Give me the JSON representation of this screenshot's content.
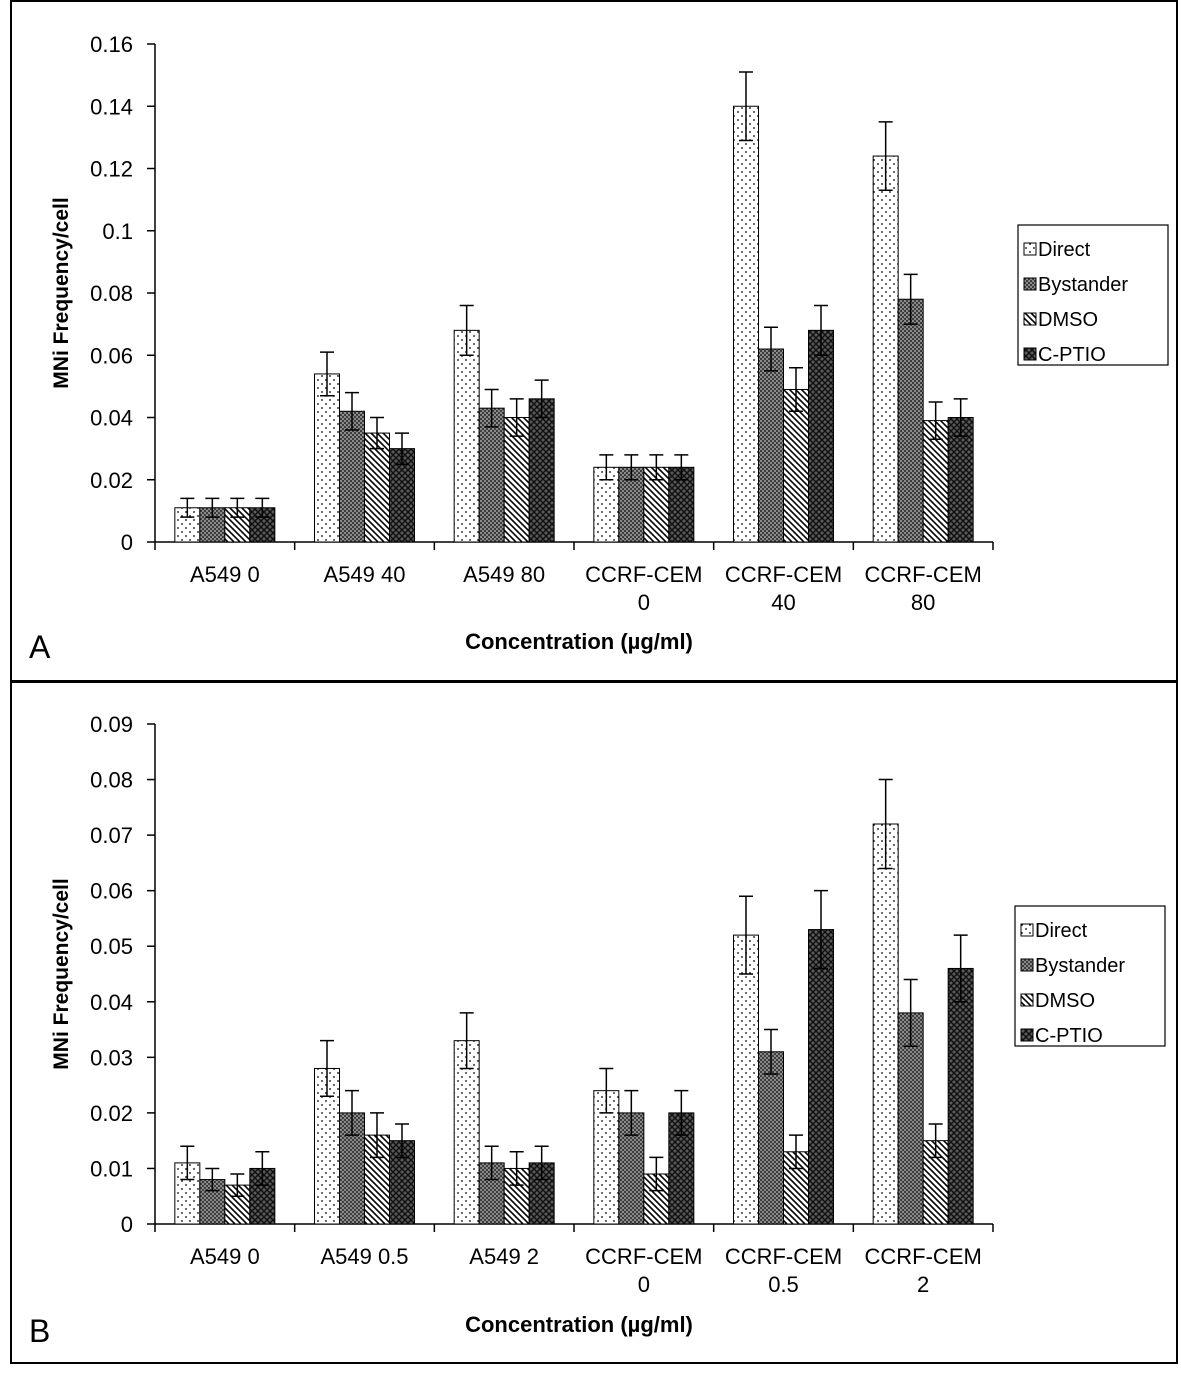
{
  "chart_data": [
    {
      "type": "bar",
      "panel_label": "A",
      "xlabel": "Concentration (µg/ml)",
      "ylabel": "MNi Frequency/cell",
      "ylim": [
        0,
        0.16
      ],
      "yticks": [
        0,
        0.02,
        0.04,
        0.06,
        0.08,
        0.1,
        0.12,
        0.14,
        0.16
      ],
      "ytick_labels": [
        "0",
        "0.02",
        "0.04",
        "0.06",
        "0.08",
        "0.1",
        "0.12",
        "0.14",
        "0.16"
      ],
      "categories": [
        [
          "A549 0"
        ],
        [
          "A549 40"
        ],
        [
          "A549 80"
        ],
        [
          "CCRF-CEM",
          "0"
        ],
        [
          "CCRF-CEM",
          "40"
        ],
        [
          "CCRF-CEM",
          "80"
        ]
      ],
      "legend_placement": "right",
      "series": [
        {
          "name": "Direct",
          "pattern": "dots",
          "values": [
            0.011,
            0.054,
            0.068,
            0.024,
            0.14,
            0.124
          ],
          "errors": [
            0.003,
            0.007,
            0.008,
            0.004,
            0.011,
            0.011
          ]
        },
        {
          "name": "Bystander",
          "pattern": "dense",
          "values": [
            0.011,
            0.042,
            0.043,
            0.024,
            0.062,
            0.078
          ],
          "errors": [
            0.003,
            0.006,
            0.006,
            0.004,
            0.007,
            0.008
          ]
        },
        {
          "name": "DMSO",
          "pattern": "diagonal",
          "values": [
            0.011,
            0.035,
            0.04,
            0.024,
            0.049,
            0.039
          ],
          "errors": [
            0.003,
            0.005,
            0.006,
            0.004,
            0.007,
            0.006
          ]
        },
        {
          "name": "C-PTIO",
          "pattern": "crosshatch",
          "values": [
            0.011,
            0.03,
            0.046,
            0.024,
            0.068,
            0.04
          ],
          "errors": [
            0.003,
            0.005,
            0.006,
            0.004,
            0.008,
            0.006
          ]
        }
      ]
    },
    {
      "type": "bar",
      "panel_label": "B",
      "xlabel": "Concentration (µg/ml)",
      "ylabel": "MNi Frequency/cell",
      "ylim": [
        0,
        0.09
      ],
      "yticks": [
        0,
        0.01,
        0.02,
        0.03,
        0.04,
        0.05,
        0.06,
        0.07,
        0.08,
        0.09
      ],
      "ytick_labels": [
        "0",
        "0.01",
        "0.02",
        "0.03",
        "0.04",
        "0.05",
        "0.06",
        "0.07",
        "0.08",
        "0.09"
      ],
      "categories": [
        [
          "A549 0"
        ],
        [
          "A549 0.5"
        ],
        [
          "A549 2"
        ],
        [
          "CCRF-CEM",
          "0"
        ],
        [
          "CCRF-CEM",
          "0.5"
        ],
        [
          "CCRF-CEM",
          "2"
        ]
      ],
      "legend_placement": "right",
      "series": [
        {
          "name": "Direct",
          "pattern": "dots",
          "values": [
            0.011,
            0.028,
            0.033,
            0.024,
            0.052,
            0.072
          ],
          "errors": [
            0.003,
            0.005,
            0.005,
            0.004,
            0.007,
            0.008
          ]
        },
        {
          "name": "Bystander",
          "pattern": "dense",
          "values": [
            0.008,
            0.02,
            0.011,
            0.02,
            0.031,
            0.038
          ],
          "errors": [
            0.002,
            0.004,
            0.003,
            0.004,
            0.004,
            0.006
          ]
        },
        {
          "name": "DMSO",
          "pattern": "diagonal",
          "values": [
            0.007,
            0.016,
            0.01,
            0.009,
            0.013,
            0.015
          ],
          "errors": [
            0.002,
            0.004,
            0.003,
            0.003,
            0.003,
            0.003
          ]
        },
        {
          "name": "C-PTIO",
          "pattern": "crosshatch",
          "values": [
            0.01,
            0.015,
            0.011,
            0.02,
            0.053,
            0.046
          ],
          "errors": [
            0.003,
            0.003,
            0.003,
            0.004,
            0.007,
            0.006
          ]
        }
      ]
    }
  ]
}
